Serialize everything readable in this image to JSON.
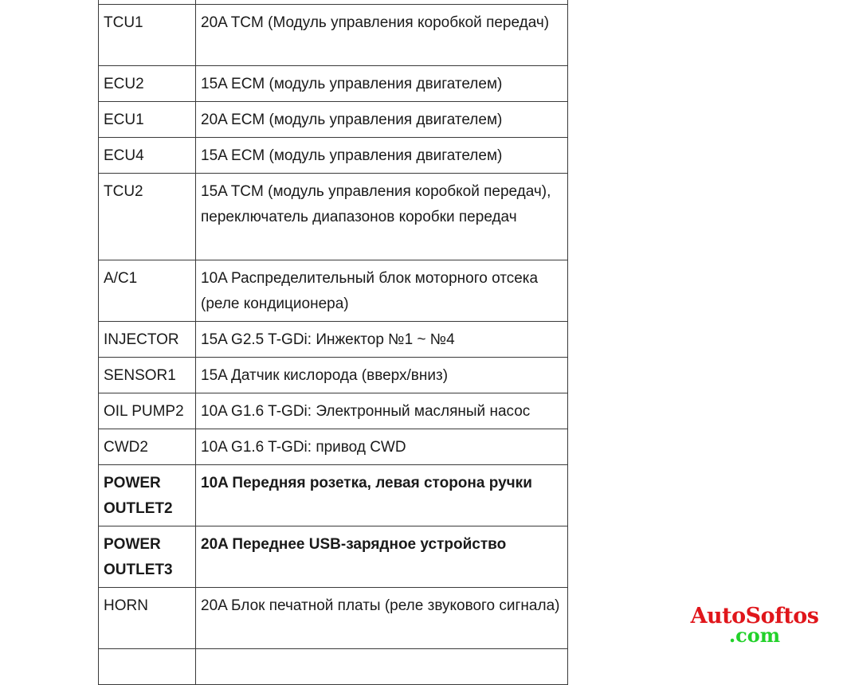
{
  "table": {
    "rows": [
      {
        "name": "",
        "desc": "",
        "bold": false
      },
      {
        "name": "TCU1",
        "desc": "20A TCM (Модуль управления коробкой передач)",
        "bold": false
      },
      {
        "name": "ECU2",
        "desc": "15A ECM (модуль управления двигателем)",
        "bold": false
      },
      {
        "name": "ECU1",
        "desc": "20A ECM (модуль управления двигателем)",
        "bold": false
      },
      {
        "name": "ECU4",
        "desc": "15A ECM (модуль управления двигателем)",
        "bold": false
      },
      {
        "name": "TCU2",
        "desc": "15A TCM (модуль управления коробкой передач), переключатель диапазонов коробки передач",
        "bold": false
      },
      {
        "name": "A/C1",
        "desc": "10A Распределительный блок моторного отсека (реле кондиционера)",
        "bold": false
      },
      {
        "name": "INJECTOR",
        "desc": "15A G2.5 T-GDi: Инжектор №1 ~ №4",
        "bold": false
      },
      {
        "name": "SENSOR1",
        "desc": "15A Датчик кислорода (вверх/вниз)",
        "bold": false
      },
      {
        "name": "OIL PUMP2",
        "desc": "10A G1.6 T-GDi: Электронный масляный насос",
        "bold": false
      },
      {
        "name": "CWD2",
        "desc": "10A G1.6 T-GDi: привод CWD",
        "bold": false
      },
      {
        "name": "POWER OUTLET2",
        "desc": "10A Передняя розетка, левая сторона ручки",
        "bold": true
      },
      {
        "name": "POWER OUTLET3",
        "desc": "20A Переднее USB-зарядное устройство",
        "bold": true
      },
      {
        "name": "HORN",
        "desc": "20A Блок печатной платы (реле звукового сигнала)",
        "bold": false
      },
      {
        "name": "",
        "desc": "",
        "bold": false
      }
    ]
  },
  "watermark": {
    "line1": "AutoSoftos",
    "line2": ".com"
  }
}
